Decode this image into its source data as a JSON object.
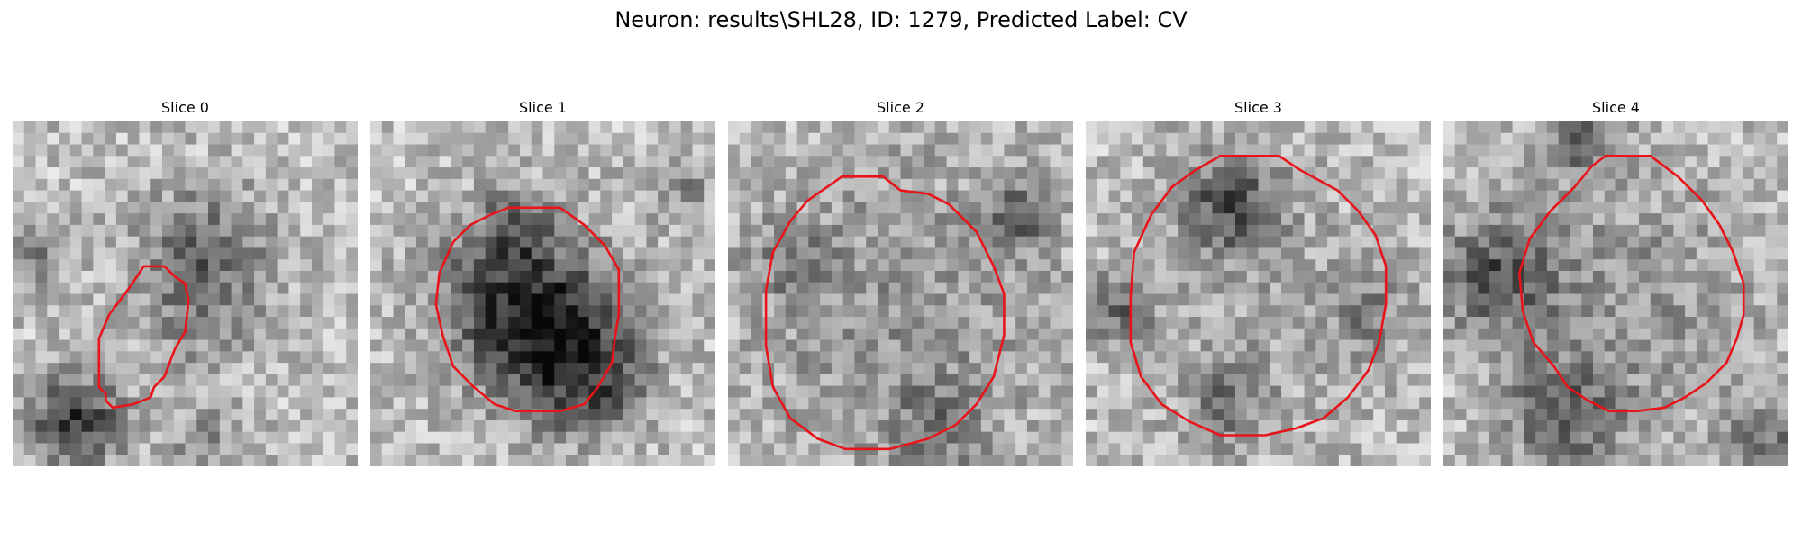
{
  "figure": {
    "title": "Neuron: results\\SHL28, ID: 1279, Predicted Label: CV"
  },
  "slices": [
    {
      "title": "Slice 0",
      "outline_color": "#e8141a",
      "outline": [
        [
          0.38,
          0.42
        ],
        [
          0.44,
          0.42
        ],
        [
          0.47,
          0.45
        ],
        [
          0.5,
          0.47
        ],
        [
          0.51,
          0.52
        ],
        [
          0.5,
          0.61
        ],
        [
          0.47,
          0.66
        ],
        [
          0.44,
          0.74
        ],
        [
          0.41,
          0.77
        ],
        [
          0.4,
          0.8
        ],
        [
          0.35,
          0.82
        ],
        [
          0.29,
          0.83
        ],
        [
          0.27,
          0.81
        ],
        [
          0.27,
          0.79
        ],
        [
          0.25,
          0.77
        ],
        [
          0.25,
          0.63
        ],
        [
          0.28,
          0.56
        ],
        [
          0.34,
          0.48
        ]
      ]
    },
    {
      "title": "Slice 1",
      "outline_color": "#e8141a",
      "outline": [
        [
          0.4,
          0.25
        ],
        [
          0.55,
          0.25
        ],
        [
          0.62,
          0.3
        ],
        [
          0.68,
          0.36
        ],
        [
          0.72,
          0.43
        ],
        [
          0.72,
          0.56
        ],
        [
          0.71,
          0.62
        ],
        [
          0.7,
          0.7
        ],
        [
          0.66,
          0.77
        ],
        [
          0.62,
          0.82
        ],
        [
          0.55,
          0.84
        ],
        [
          0.42,
          0.84
        ],
        [
          0.36,
          0.82
        ],
        [
          0.3,
          0.77
        ],
        [
          0.24,
          0.71
        ],
        [
          0.21,
          0.62
        ],
        [
          0.19,
          0.53
        ],
        [
          0.2,
          0.44
        ],
        [
          0.24,
          0.35
        ],
        [
          0.29,
          0.3
        ],
        [
          0.35,
          0.27
        ]
      ]
    },
    {
      "title": "Slice 2",
      "outline_color": "#e8141a",
      "outline": [
        [
          0.33,
          0.16
        ],
        [
          0.45,
          0.16
        ],
        [
          0.5,
          0.2
        ],
        [
          0.58,
          0.21
        ],
        [
          0.64,
          0.24
        ],
        [
          0.72,
          0.32
        ],
        [
          0.77,
          0.42
        ],
        [
          0.8,
          0.5
        ],
        [
          0.8,
          0.62
        ],
        [
          0.77,
          0.74
        ],
        [
          0.72,
          0.82
        ],
        [
          0.66,
          0.88
        ],
        [
          0.58,
          0.92
        ],
        [
          0.47,
          0.95
        ],
        [
          0.34,
          0.95
        ],
        [
          0.26,
          0.92
        ],
        [
          0.18,
          0.86
        ],
        [
          0.13,
          0.77
        ],
        [
          0.11,
          0.65
        ],
        [
          0.11,
          0.49
        ],
        [
          0.13,
          0.38
        ],
        [
          0.18,
          0.29
        ],
        [
          0.23,
          0.23
        ]
      ]
    },
    {
      "title": "Slice 3",
      "outline_color": "#e8141a",
      "outline": [
        [
          0.39,
          0.1
        ],
        [
          0.56,
          0.1
        ],
        [
          0.62,
          0.14
        ],
        [
          0.73,
          0.2
        ],
        [
          0.79,
          0.26
        ],
        [
          0.84,
          0.33
        ],
        [
          0.87,
          0.42
        ],
        [
          0.87,
          0.53
        ],
        [
          0.85,
          0.64
        ],
        [
          0.82,
          0.72
        ],
        [
          0.76,
          0.8
        ],
        [
          0.69,
          0.86
        ],
        [
          0.61,
          0.89
        ],
        [
          0.52,
          0.91
        ],
        [
          0.39,
          0.91
        ],
        [
          0.3,
          0.87
        ],
        [
          0.22,
          0.82
        ],
        [
          0.16,
          0.74
        ],
        [
          0.13,
          0.64
        ],
        [
          0.13,
          0.51
        ],
        [
          0.14,
          0.38
        ],
        [
          0.19,
          0.27
        ],
        [
          0.25,
          0.19
        ],
        [
          0.32,
          0.14
        ]
      ]
    },
    {
      "title": "Slice 4",
      "outline_color": "#e8141a",
      "outline": [
        [
          0.47,
          0.1
        ],
        [
          0.6,
          0.1
        ],
        [
          0.68,
          0.16
        ],
        [
          0.75,
          0.23
        ],
        [
          0.8,
          0.3
        ],
        [
          0.84,
          0.38
        ],
        [
          0.87,
          0.47
        ],
        [
          0.87,
          0.56
        ],
        [
          0.85,
          0.63
        ],
        [
          0.82,
          0.7
        ],
        [
          0.76,
          0.76
        ],
        [
          0.7,
          0.8
        ],
        [
          0.64,
          0.83
        ],
        [
          0.56,
          0.84
        ],
        [
          0.48,
          0.84
        ],
        [
          0.42,
          0.81
        ],
        [
          0.36,
          0.77
        ],
        [
          0.32,
          0.71
        ],
        [
          0.26,
          0.64
        ],
        [
          0.23,
          0.55
        ],
        [
          0.22,
          0.44
        ],
        [
          0.25,
          0.34
        ],
        [
          0.31,
          0.26
        ],
        [
          0.38,
          0.19
        ],
        [
          0.43,
          0.13
        ]
      ]
    }
  ]
}
